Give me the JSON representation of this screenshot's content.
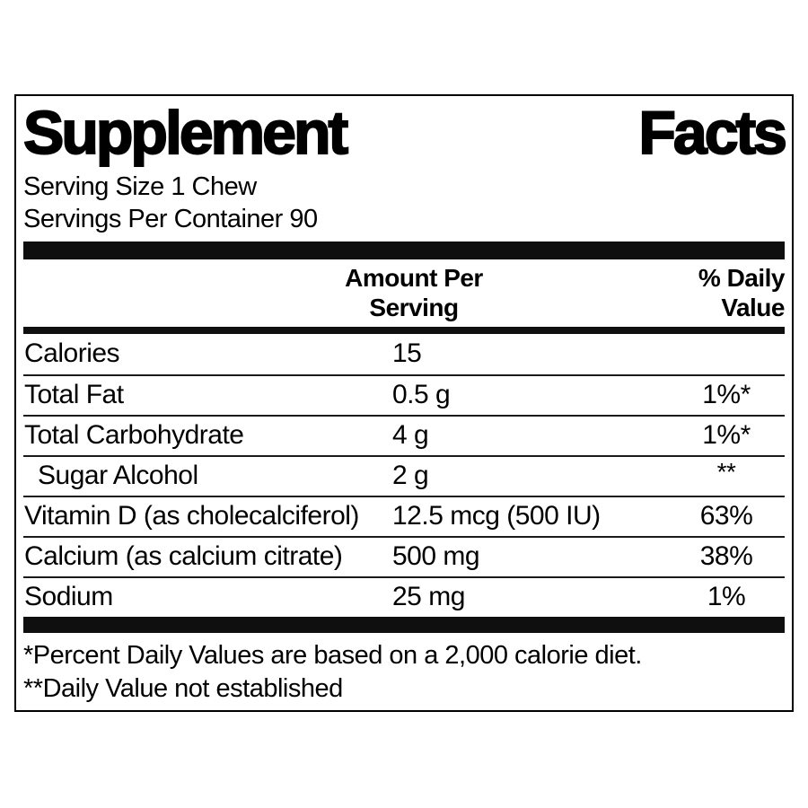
{
  "label": {
    "title_words": [
      "Supplement",
      "Facts"
    ],
    "serving_size": "Serving Size 1 Chew",
    "servings_per_container": "Servings Per Container 90",
    "columns": {
      "amount_line1": "Amount Per",
      "amount_line2": "Serving",
      "dv_line1": "% Daily",
      "dv_line2": "Value"
    },
    "rows": [
      {
        "name": "Calories",
        "amount": "15",
        "dv": ""
      },
      {
        "name": "Total Fat",
        "amount": "0.5 g",
        "dv": "1%*"
      },
      {
        "name": "Total Carbohydrate",
        "amount": "4 g",
        "dv": "1%*"
      },
      {
        "name": "Sugar Alcohol",
        "amount": "2 g",
        "dv": "**"
      },
      {
        "name": "Vitamin D (as cholecalciferol)",
        "amount": "12.5 mcg (500 IU)",
        "dv": "63%"
      },
      {
        "name": "Calcium (as calcium citrate)",
        "amount": "500 mg",
        "dv": "38%"
      },
      {
        "name": "Sodium",
        "amount": "25 mg",
        "dv": "1%"
      }
    ],
    "footnotes": [
      "*Percent Daily Values are based on a 2,000 calorie diet.",
      "**Daily Value not established"
    ]
  }
}
